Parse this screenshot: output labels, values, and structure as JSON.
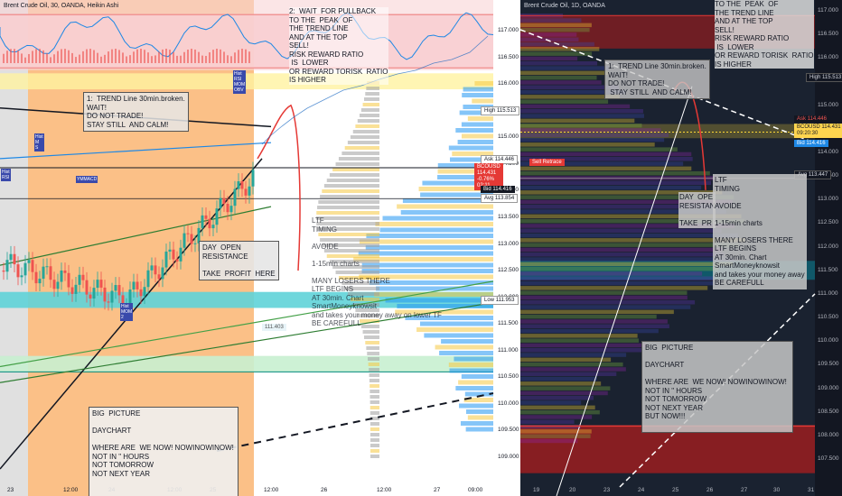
{
  "left_chart": {
    "symbol_title": "Brent Crude Oil, 30, OANDA, Heikin Ashi",
    "price_axis": [
      "117.000",
      "116.500",
      "116.000",
      "115.500",
      "115.000",
      "114.500",
      "114.000",
      "113.500",
      "113.000",
      "112.500",
      "112.000",
      "111.500",
      "111.000",
      "110.500",
      "110.000",
      "109.500",
      "109.000"
    ],
    "time_axis": [
      "23",
      "12:00",
      "24",
      "12:00",
      "25",
      "12:00",
      "26",
      "12:00",
      "27",
      "09:00"
    ],
    "tags": {
      "high": "High",
      "high_val": "115.513",
      "ask": "Ask",
      "ask_val": "114.446",
      "sym": "BCOUSD",
      "last_val": "114.431",
      "change": "-0.76%",
      "countdown": "02:11",
      "bid": "Bid",
      "bid_val": "114.416",
      "avg": "Avg",
      "avg_val": "113.854",
      "low": "Low",
      "low_val": "111.953",
      "vwap_val": "111.403"
    },
    "notes": {
      "pullback": "2:  WAIT  FOR PULLBACK\nTO THE  PEAK  OF\nTHE TREND LINE\nAND AT THE TOP\nSELL!\nRISK REWARD RATIO\n IS  LOWER\nOR REWARD TORISK  RATIO\nIS HIGHER",
      "trendline": "1:  TREND Line 30min.broken.\nWAIT!\nDO NOT TRADE!\nSTAY STILL  AND CALM!",
      "day_open": "DAY  OPEN\nRESISTANCE\n\nTAKE  PROFIT  HERE",
      "ltf": "LTF\nTIMING\n\nAVOIDE\n\n1-15min charts\n\nMANY LOSERS THERE\nLTF BEGINS\nAT 30min. Chart\nSmartMoneyknowsit\nand takes your money away on lower TF\nBE CAREFULL",
      "big_picture": "BIG  PICTURE\n\nDAYCHART\n\nWHERE ARE  WE NOW! NOWINOWINOW!\nNOT IN \" HOURS\nNOT TOMORROW\nNOT NEXT YEAR"
    },
    "markers": {
      "hist_rsi_mom": "Hist\nRSI\nMOM\nOBV",
      "hist_top": "Hist\nRSI",
      "hist_mid": "Hist\nM\nS",
      "ymacd": "YMMACD",
      "hist_bottom": "Hist\nMOM\n2"
    }
  },
  "right_chart": {
    "symbol_title": "Brent Crude Oil, 1D, OANDA",
    "price_axis": [
      "117.000",
      "116.500",
      "116.000",
      "115.500",
      "115.000",
      "114.500",
      "114.000",
      "113.500",
      "113.000",
      "112.500",
      "112.000",
      "111.500",
      "111.000",
      "110.500",
      "110.000",
      "109.500",
      "109.000",
      "108.500",
      "108.000",
      "107.500"
    ],
    "time_axis": [
      "19",
      "20",
      "23",
      "24",
      "25",
      "26",
      "27",
      "30",
      "31"
    ],
    "tags": {
      "high": "High",
      "high_val": "115.513",
      "ask": "Ask",
      "ask_val": "114.446",
      "sym": "BCOUSD",
      "last_val": "114.431",
      "countdown": "09:20:30",
      "bid": "Bid",
      "bid_val": "114.416",
      "avg": "Avg",
      "avg_val": "113.447",
      "sell_retrace": "Sell Retrace"
    },
    "notes": {
      "pullback": "TO THE  PEAK  OF\nTHE TREND LINE\nAND AT THE TOP\nSELL!\nRISK REWARD RATIO\n IS  LOWER\nOR REWARD TORISK  RATIO\nIS HIGHER",
      "trendline": "1:  TREND Line 30min.broken.\nWAIT!\nDO NOT TRADE!\n STAY STILL  AND CALM!",
      "day_open": "DAY  OPE\nRESISTAN\n\nTAKE  PR",
      "ltf": "LTF\nTIMING\n\nAVOIDE\n\n1-15min charts\n\nMANY LOSERS THERE\nLTF BEGINS\nAT 30min. Chart\nSmartMoneyknowsit\nand takes your money away\nBE CAREFULL",
      "big_picture": "BIG  PICTURE\n\nDAYCHART\n\nWHERE ARE  WE NOW! NOWINOWINOW!\nNOT IN \" HOURS\nNOT TOMORROW\nNOT NEXT YEAR\nBUT NOW!!!"
    }
  },
  "colors": {
    "sell_zone": "#f8c8cc",
    "sell_border": "#e53935",
    "orange_session": "#fbb97a",
    "cyan_zone": "#5fd3d8",
    "green_zone": "#c8f0d0",
    "bull_candle": "#26a69a",
    "bear_candle": "#ef5350",
    "profile_blue": "#2196f3",
    "profile_yellow": "#f5c842"
  }
}
